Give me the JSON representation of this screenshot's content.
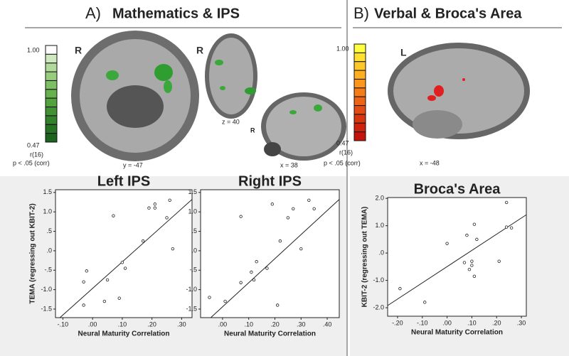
{
  "figure": {
    "panel_a": {
      "letter": "A)",
      "title": "Mathematics & IPS",
      "colorbar_max": "1.00",
      "colorbar_min": "0.47",
      "stat": "r(16)",
      "threshold": "p < .05 (corr)",
      "coronal_side": "R",
      "coronal_slice": "y = -47",
      "axial_side": "R",
      "axial_slice": "z = 40",
      "sagittal_side": "R",
      "sagittal_slice": "x = 38"
    },
    "panel_b": {
      "letter": "B)",
      "title": "Verbal & Broca's Area",
      "colorbar_max": "1.00",
      "colorbar_min": "0.47",
      "stat": "r(16)",
      "threshold": "p < .05 (corr)",
      "sagittal_side": "L",
      "sagittal_slice": "x = -48"
    }
  },
  "chart_data": [
    {
      "type": "scatter",
      "title": "Left IPS",
      "xlabel": "Neural Maturity Correlation",
      "ylabel": "TEMA (regressing out KBIT-2)",
      "color": "#222",
      "x": [
        -0.03,
        -0.02,
        -0.03,
        0.04,
        0.05,
        0.07,
        0.09,
        0.1,
        0.11,
        0.17,
        0.19,
        0.21,
        0.21,
        0.25,
        0.26,
        0.27
      ],
      "values": [
        -0.8,
        -0.52,
        -1.4,
        -1.3,
        -0.75,
        0.9,
        -1.22,
        -0.3,
        -0.45,
        0.25,
        1.1,
        1.2,
        1.1,
        0.85,
        1.3,
        0.05
      ],
      "fit": {
        "x": [
          -0.11,
          0.335
        ],
        "y": [
          -1.72,
          1.32
        ]
      },
      "xlim": [
        -0.125,
        0.335
      ],
      "ylim": [
        -1.72,
        1.57
      ],
      "xticks": [
        {
          "value": -0.1,
          "label": "-.10"
        },
        {
          "value": 0,
          "label": ".00"
        },
        {
          "value": 0.1,
          "label": ".10"
        },
        {
          "value": 0.2,
          "label": ".20"
        },
        {
          "value": 0.3,
          "label": ".30"
        }
      ],
      "yticks": [
        {
          "value": -1.5,
          "label": "-1.5"
        },
        {
          "value": -1,
          "label": "-1.0"
        },
        {
          "value": -0.5,
          "label": "-.5"
        },
        {
          "value": 0,
          "label": ".0"
        },
        {
          "value": 0.5,
          "label": ".5"
        },
        {
          "value": 1,
          "label": "1.0"
        },
        {
          "value": 1.5,
          "label": "1.5"
        }
      ]
    },
    {
      "type": "scatter",
      "title": "Right IPS",
      "xlabel": "Neural Maturity Correlation",
      "color": "#222",
      "x": [
        -0.05,
        0.01,
        0.07,
        0.07,
        0.11,
        0.12,
        0.13,
        0.17,
        0.19,
        0.21,
        0.22,
        0.25,
        0.27,
        0.3,
        0.33,
        0.35
      ],
      "values": [
        -1.2,
        -1.3,
        0.88,
        -0.82,
        -0.55,
        -0.75,
        -0.28,
        -0.45,
        1.2,
        -1.4,
        0.25,
        0.85,
        1.08,
        0.05,
        1.3,
        1.08
      ],
      "fit": {
        "x": [
          -0.045,
          0.446
        ],
        "y": [
          -1.72,
          1.32
        ]
      },
      "xlim": [
        -0.084,
        0.446
      ],
      "ylim": [
        -1.72,
        1.57
      ],
      "xticks": [
        {
          "value": 0,
          "label": ".00"
        },
        {
          "value": 0.1,
          "label": ".10"
        },
        {
          "value": 0.2,
          "label": ".20"
        },
        {
          "value": 0.3,
          "label": ".30"
        },
        {
          "value": 0.4,
          "label": ".40"
        }
      ],
      "yticks": [
        {
          "value": -1.5,
          "label": "-1.5"
        },
        {
          "value": -1,
          "label": "-1.0"
        },
        {
          "value": -0.5,
          "label": "-.5"
        },
        {
          "value": 0,
          "label": ".0"
        },
        {
          "value": 0.5,
          "label": ".5"
        },
        {
          "value": 1,
          "label": "1.0"
        },
        {
          "value": 1.5,
          "label": "1.5"
        }
      ]
    },
    {
      "type": "scatter",
      "title": "Broca's Area",
      "xlabel": "Neural Maturity Correlation",
      "ylabel": "KBIT-2 (regressing out TEMA)",
      "color": "#222",
      "x": [
        -0.19,
        -0.09,
        0.0,
        0.07,
        0.08,
        0.09,
        0.1,
        0.1,
        0.11,
        0.11,
        0.12,
        0.21,
        0.24,
        0.24,
        0.26
      ],
      "values": [
        -1.3,
        -1.8,
        0.35,
        -0.35,
        0.65,
        -0.6,
        -0.3,
        -0.45,
        -0.85,
        1.05,
        0.5,
        -0.3,
        1.85,
        0.95,
        0.92
      ],
      "fit": {
        "x": [
          -0.24,
          0.32
        ],
        "y": [
          -1.92,
          1.4
        ]
      },
      "xlim": [
        -0.24,
        0.32
      ],
      "ylim": [
        -2.31,
        2.03
      ],
      "xticks": [
        {
          "value": -0.2,
          "label": "-.20"
        },
        {
          "value": -0.1,
          "label": "-.10"
        },
        {
          "value": 0,
          "label": ".00"
        },
        {
          "value": 0.1,
          "label": ".10"
        },
        {
          "value": 0.2,
          "label": ".20"
        },
        {
          "value": 0.3,
          "label": ".30"
        }
      ],
      "yticks": [
        {
          "value": -2,
          "label": "-2.0"
        },
        {
          "value": -1,
          "label": "-1.0"
        },
        {
          "value": 0,
          "label": ".0"
        },
        {
          "value": 1,
          "label": "1.0"
        },
        {
          "value": 2,
          "label": "2.0"
        }
      ]
    }
  ]
}
